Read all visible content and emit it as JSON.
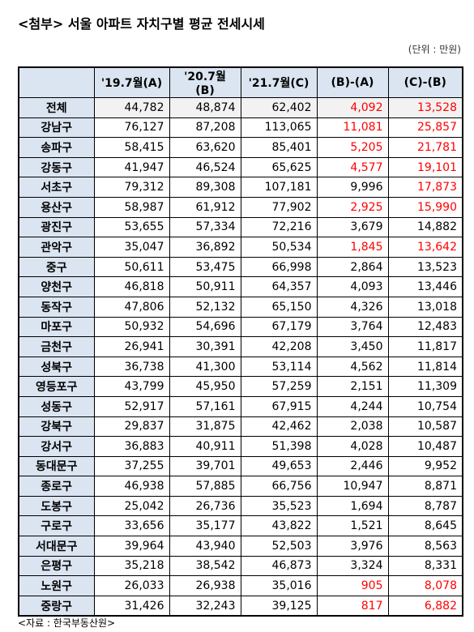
{
  "header": {
    "title": "<첨부> 서울 아파트 자치구별 평균 전세시세",
    "unit": "(단위 : 만원)"
  },
  "table": {
    "columns": [
      "'19.7월(A)",
      "'20.7월(B)",
      "'21.7월(C)",
      "(B)-(A)",
      "(C)-(B)"
    ],
    "rows": [
      [
        "전체",
        "44,782",
        "48,874",
        "62,402",
        "4,092",
        "13,528"
      ],
      [
        "강남구",
        "76,127",
        "87,208",
        "113,065",
        "11,081",
        "25,857"
      ],
      [
        "송파구",
        "58,415",
        "63,620",
        "85,401",
        "5,205",
        "21,781"
      ],
      [
        "강동구",
        "41,947",
        "46,524",
        "65,625",
        "4,577",
        "19,101"
      ],
      [
        "서초구",
        "79,312",
        "89,308",
        "107,181",
        "9,996",
        "17,873"
      ],
      [
        "용산구",
        "58,987",
        "61,912",
        "77,902",
        "2,925",
        "15,990"
      ],
      [
        "광진구",
        "53,655",
        "57,334",
        "72,216",
        "3,679",
        "14,882"
      ],
      [
        "관악구",
        "35,047",
        "36,892",
        "50,534",
        "1,845",
        "13,642"
      ],
      [
        "중구",
        "50,611",
        "53,475",
        "66,998",
        "2,864",
        "13,523"
      ],
      [
        "양천구",
        "46,818",
        "50,911",
        "64,357",
        "4,093",
        "13,446"
      ],
      [
        "동작구",
        "47,806",
        "52,132",
        "65,150",
        "4,326",
        "13,018"
      ],
      [
        "마포구",
        "50,932",
        "54,696",
        "67,179",
        "3,764",
        "12,483"
      ],
      [
        "금천구",
        "26,941",
        "30,391",
        "42,208",
        "3,450",
        "11,817"
      ],
      [
        "성북구",
        "36,738",
        "41,300",
        "53,114",
        "4,562",
        "11,814"
      ],
      [
        "영등포구",
        "43,799",
        "45,950",
        "57,259",
        "2,151",
        "11,309"
      ],
      [
        "성동구",
        "52,917",
        "57,161",
        "67,915",
        "4,244",
        "10,754"
      ],
      [
        "강북구",
        "29,837",
        "31,875",
        "42,462",
        "2,038",
        "10,587"
      ],
      [
        "강서구",
        "36,883",
        "40,911",
        "51,398",
        "4,028",
        "10,487"
      ],
      [
        "동대문구",
        "37,255",
        "39,701",
        "49,653",
        "2,446",
        "9,952"
      ],
      [
        "종로구",
        "46,938",
        "57,885",
        "66,756",
        "10,947",
        "8,871"
      ],
      [
        "도봉구",
        "25,042",
        "26,736",
        "35,523",
        "1,694",
        "8,787"
      ],
      [
        "구로구",
        "33,656",
        "35,177",
        "43,822",
        "1,521",
        "8,645"
      ],
      [
        "서대문구",
        "39,964",
        "43,940",
        "52,503",
        "3,976",
        "8,563"
      ],
      [
        "은평구",
        "35,218",
        "38,542",
        "46,873",
        "3,324",
        "8,331"
      ],
      [
        "노원구",
        "26,033",
        "26,938",
        "35,016",
        "905",
        "8,078"
      ],
      [
        "중랑구",
        "31,426",
        "32,243",
        "39,125",
        "817",
        "6,882"
      ]
    ],
    "red_color": "#ff0000",
    "red_cells": [
      [
        0,
        4
      ],
      [
        0,
        5
      ],
      [
        1,
        4
      ],
      [
        1,
        5
      ],
      [
        2,
        4
      ],
      [
        2,
        5
      ],
      [
        3,
        4
      ],
      [
        3,
        5
      ],
      [
        4,
        5
      ],
      [
        5,
        4
      ],
      [
        5,
        5
      ],
      [
        7,
        4
      ],
      [
        7,
        5
      ],
      [
        24,
        4
      ],
      [
        24,
        5
      ],
      [
        25,
        4
      ],
      [
        25,
        5
      ]
    ]
  },
  "footer": {
    "source": "<자료 : 한국부동산원>"
  }
}
